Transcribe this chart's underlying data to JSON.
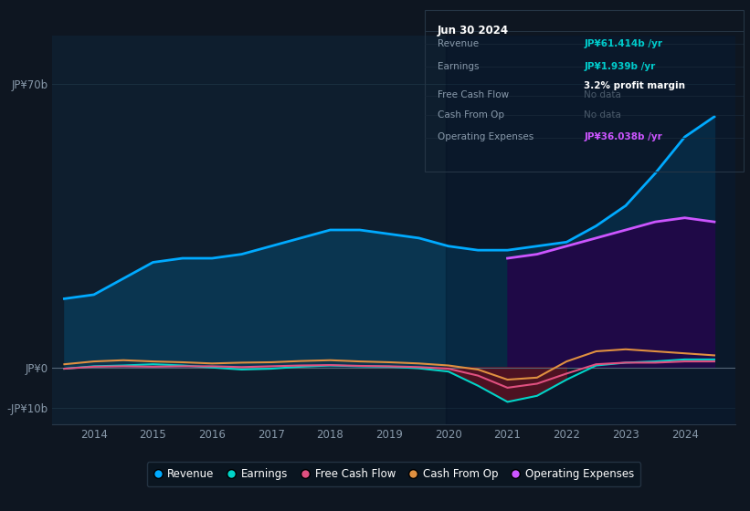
{
  "bg_color": "#0e1621",
  "chart_bg": "#0e1e2e",
  "grid_color": "#1a3040",
  "title_text": "Jun 30 2024",
  "ylim": [
    -14,
    82
  ],
  "xticks": [
    2014,
    2015,
    2016,
    2017,
    2018,
    2019,
    2020,
    2021,
    2022,
    2023,
    2024
  ],
  "xlim_start": 2013.3,
  "xlim_end": 2024.85,
  "revenue_color": "#00aaff",
  "earnings_color": "#00d4c8",
  "fcf_color": "#e05080",
  "cashfromop_color": "#e09040",
  "opex_color": "#cc55ff",
  "revenue_fill_color": "#0a3550",
  "opex_fill_color": "#2a0a55",
  "neg_fill_color": "#6b1020",
  "label_color": "#8899aa",
  "info_rows": [
    {
      "label": "Revenue",
      "value": "JP¥61.414b /yr",
      "value_color": "#00cccc",
      "sub": null
    },
    {
      "label": "Earnings",
      "value": "JP¥1.939b /yr",
      "value_color": "#00cccc",
      "sub": "3.2% profit margin"
    },
    {
      "label": "Free Cash Flow",
      "value": "No data",
      "value_color": "#5a6a7a",
      "sub": null
    },
    {
      "label": "Cash From Op",
      "value": "No data",
      "value_color": "#5a6a7a",
      "sub": null
    },
    {
      "label": "Operating Expenses",
      "value": "JP¥36.038b /yr",
      "value_color": "#cc55ff",
      "sub": null
    }
  ],
  "series": {
    "years": [
      2013.5,
      2014.0,
      2014.5,
      2015.0,
      2015.5,
      2016.0,
      2016.5,
      2017.0,
      2017.5,
      2018.0,
      2018.5,
      2019.0,
      2019.5,
      2020.0,
      2020.5,
      2021.0,
      2021.5,
      2022.0,
      2022.5,
      2023.0,
      2023.5,
      2024.0,
      2024.5
    ],
    "revenue": [
      17,
      18,
      22,
      26,
      27,
      27,
      28,
      30,
      32,
      34,
      34,
      33,
      32,
      30,
      29,
      29,
      30,
      31,
      35,
      40,
      48,
      57,
      62
    ],
    "earnings": [
      -0.3,
      0.3,
      0.5,
      0.8,
      0.5,
      0.0,
      -0.5,
      -0.3,
      0.2,
      0.5,
      0.3,
      0.2,
      -0.2,
      -1.0,
      -4.5,
      -8.5,
      -7.0,
      -3.0,
      0.5,
      1.2,
      1.5,
      2.0,
      2.0
    ],
    "fcf": [
      -0.3,
      0.2,
      0.3,
      0.2,
      0.3,
      0.3,
      0.1,
      0.3,
      0.5,
      0.6,
      0.4,
      0.3,
      0.1,
      -0.3,
      -2.0,
      -5.0,
      -4.0,
      -1.5,
      0.8,
      1.2,
      1.2,
      1.5,
      1.5
    ],
    "cashfromop": [
      0.8,
      1.5,
      1.8,
      1.5,
      1.3,
      1.0,
      1.2,
      1.3,
      1.6,
      1.8,
      1.5,
      1.3,
      1.0,
      0.5,
      -0.5,
      -3.0,
      -2.5,
      1.5,
      4.0,
      4.5,
      4.0,
      3.5,
      3.0
    ],
    "opex": [
      null,
      null,
      null,
      null,
      null,
      null,
      null,
      null,
      null,
      null,
      null,
      null,
      null,
      null,
      null,
      27.0,
      28.0,
      30.0,
      32.0,
      34.0,
      36.0,
      37.0,
      36.0
    ]
  },
  "legend_items": [
    {
      "label": "Revenue",
      "color": "#00aaff"
    },
    {
      "label": "Earnings",
      "color": "#00d4c8"
    },
    {
      "label": "Free Cash Flow",
      "color": "#e05080"
    },
    {
      "label": "Cash From Op",
      "color": "#e09040"
    },
    {
      "label": "Operating Expenses",
      "color": "#cc55ff"
    }
  ]
}
